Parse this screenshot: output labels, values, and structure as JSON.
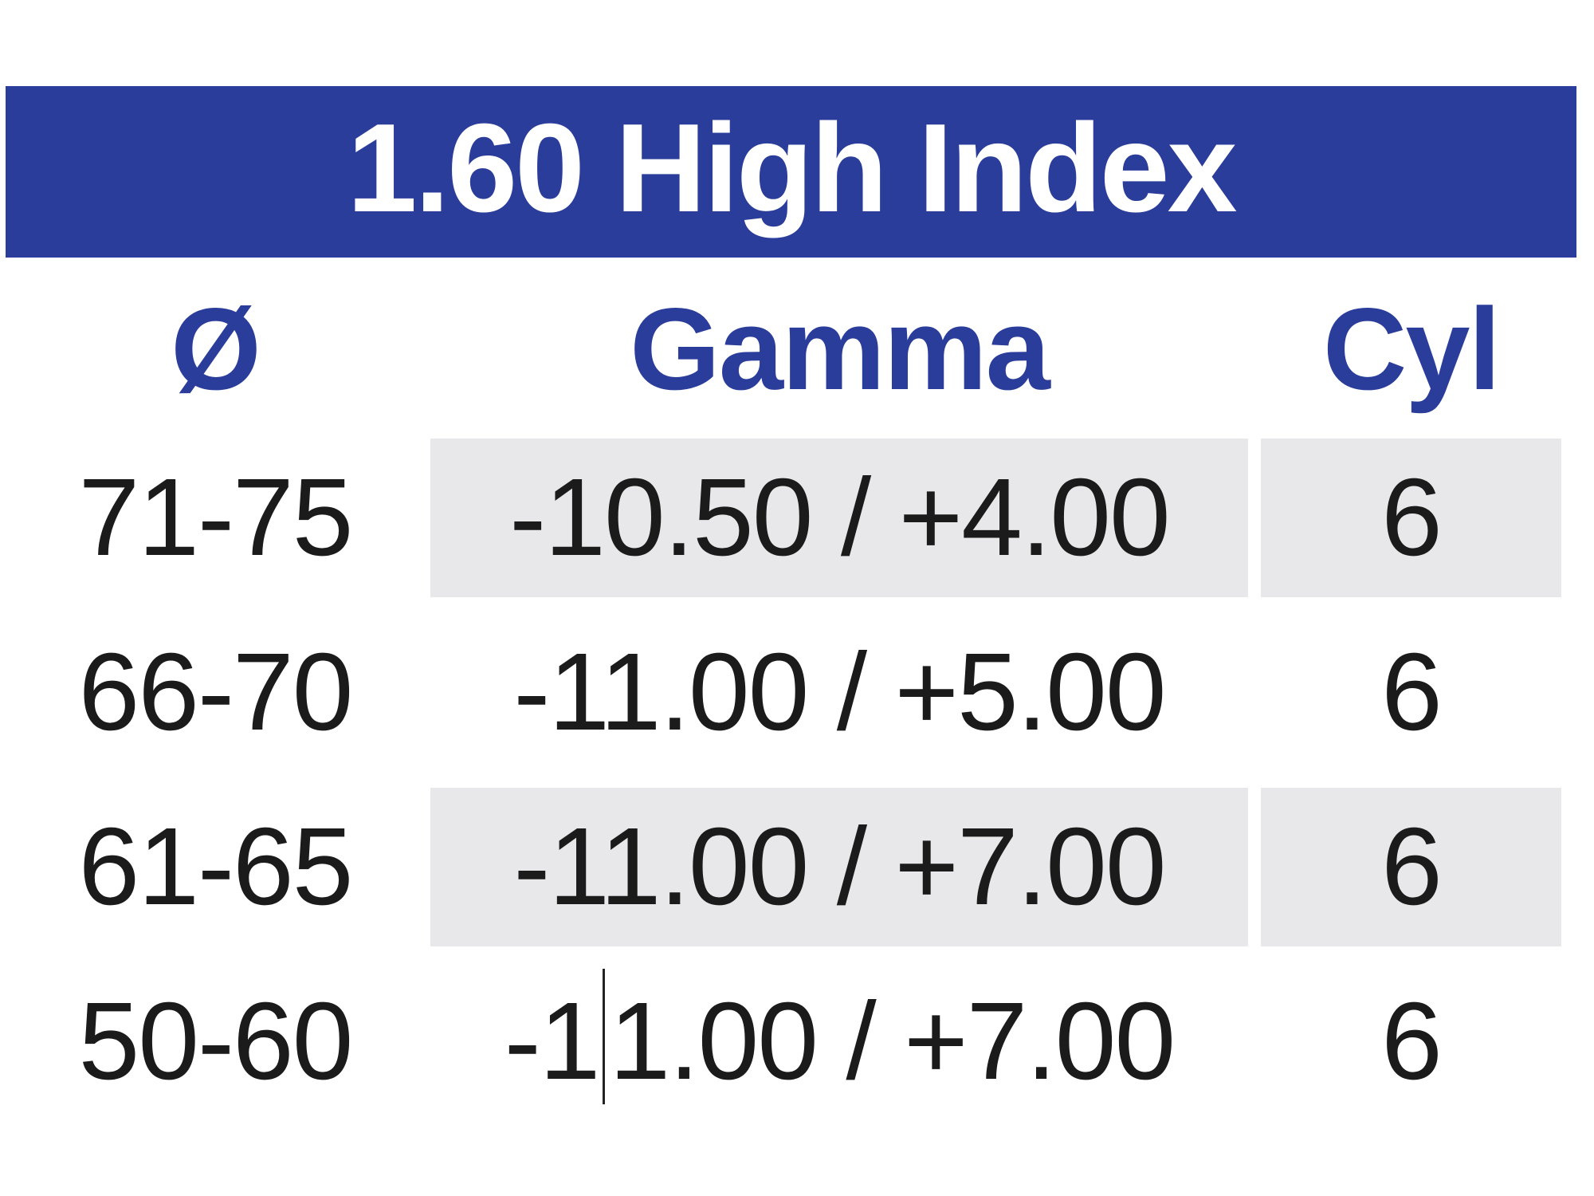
{
  "table": {
    "title": "1.60 High Index",
    "columns": [
      {
        "label": "Ø"
      },
      {
        "label": "Gamma"
      },
      {
        "label": "Cyl"
      }
    ],
    "rows": [
      {
        "diameter": "71-75",
        "gamma": "-10.50 / +4.00",
        "cyl": "6",
        "shaded": true
      },
      {
        "diameter": "66-70",
        "gamma": "-11.00 / +5.00",
        "cyl": "6",
        "shaded": false
      },
      {
        "diameter": "61-65",
        "gamma": "-11.00 / +7.00",
        "cyl": "6",
        "shaded": true
      },
      {
        "diameter": "50-60",
        "gamma": "-11.00 / +7.00",
        "gamma_before_caret": "-1",
        "gamma_after_caret": "1.00 / +7.00",
        "cyl": "6",
        "shaded": false
      }
    ],
    "text_cursor": {
      "row_index": 3,
      "column": "Gamma",
      "position_after_text": "-1"
    },
    "colors": {
      "banner_blue": "#2B3D9B",
      "header_text_blue": "#2B3D9B",
      "shaded_cell_gray": "#E8E8EA",
      "body_text": "#1B1B1B",
      "title_text": "#FFFFFF",
      "cursor": "#222222"
    }
  },
  "chart_data": {
    "type": "table",
    "title": "1.60 High Index",
    "headers": [
      "Ø",
      "Gamma",
      "Cyl"
    ],
    "rows": [
      [
        "71-75",
        "-10.50 / +4.00",
        "6"
      ],
      [
        "66-70",
        "-11.00 / +5.00",
        "6"
      ],
      [
        "61-65",
        "-11.00 / +7.00",
        "6"
      ],
      [
        "50-60",
        "-11.00 / +7.00",
        "6"
      ]
    ]
  }
}
